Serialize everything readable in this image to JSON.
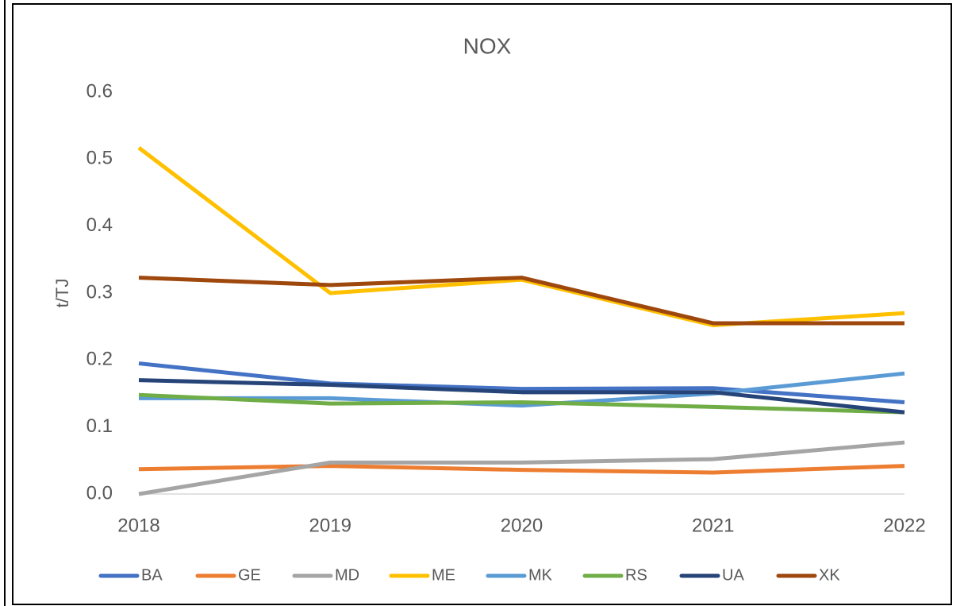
{
  "chart_data": {
    "type": "line",
    "title": "NOX",
    "y_label": "t/TJ",
    "x": [
      2018,
      2019,
      2020,
      2021,
      2022
    ],
    "xlim": [
      2018,
      2022
    ],
    "xticks": [
      2018,
      2019,
      2020,
      2021,
      2022
    ],
    "ylim": [
      0,
      0.6
    ],
    "yticks": [
      {
        "value": 0,
        "label": "0.0"
      },
      0.1,
      0.2,
      0.3,
      0.4,
      0.5,
      0.6
    ],
    "grid": false,
    "legend": "bottom",
    "series": [
      {
        "name": "BA",
        "color": "#4472c4",
        "values": [
          0.195,
          0.165,
          0.157,
          0.158,
          0.137
        ]
      },
      {
        "name": "GE",
        "color": "#ed7d31",
        "values": [
          0.037,
          0.042,
          0.036,
          0.032,
          0.042
        ]
      },
      {
        "name": "MD",
        "color": "#a5a5a5",
        "values": [
          0.0,
          0.047,
          0.047,
          0.052,
          0.077
        ]
      },
      {
        "name": "ME",
        "color": "#ffc000",
        "values": [
          0.517,
          0.3,
          0.32,
          0.252,
          0.27
        ]
      },
      {
        "name": "MK",
        "color": "#5b9bd5",
        "values": [
          0.143,
          0.143,
          0.132,
          0.15,
          0.18
        ]
      },
      {
        "name": "RS",
        "color": "#70ad47",
        "values": [
          0.148,
          0.135,
          0.137,
          0.13,
          0.122
        ]
      },
      {
        "name": "UA",
        "color": "#264478",
        "values": [
          0.17,
          0.163,
          0.152,
          0.152,
          0.122
        ]
      },
      {
        "name": "XK",
        "color": "#9e480e",
        "values": [
          0.323,
          0.312,
          0.323,
          0.255,
          0.255
        ]
      }
    ]
  }
}
